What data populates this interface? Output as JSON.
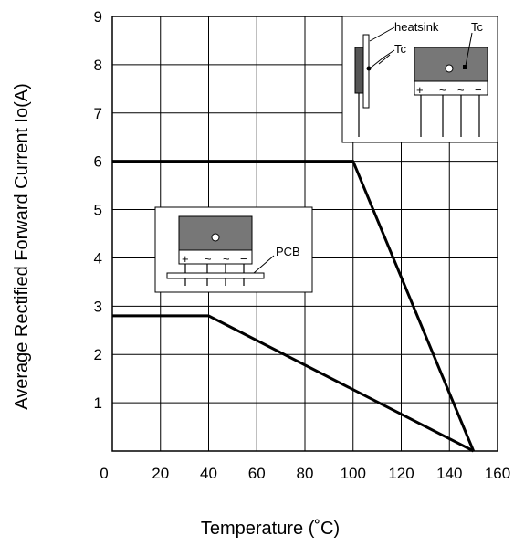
{
  "chart_data": {
    "type": "line",
    "xlabel": "Temperature (˚C)",
    "ylabel": "Average Rectified Forward Current Io(A)",
    "xlim": [
      0,
      160
    ],
    "ylim": [
      0,
      9
    ],
    "x_ticks": [
      "0",
      "20",
      "40",
      "60",
      "80",
      "100",
      "120",
      "140",
      "160"
    ],
    "y_ticks": [
      "1",
      "2",
      "3",
      "4",
      "5",
      "6",
      "7",
      "8",
      "9"
    ],
    "grid": true,
    "series": [
      {
        "points": [
          [
            0,
            6
          ],
          [
            100,
            6
          ],
          [
            150,
            0
          ]
        ]
      },
      {
        "points": [
          [
            0,
            2.8
          ],
          [
            40,
            2.8
          ],
          [
            150,
            0
          ]
        ]
      }
    ],
    "annotations": {
      "heatsink_inset": {
        "heatsink_label": "heatsink",
        "tc_label_side": "Tc",
        "tc_label_front": "Tc"
      },
      "pcb_inset": {
        "pcb_label": "PCB"
      }
    },
    "pin_marks": [
      "+",
      "~",
      "~",
      "−"
    ]
  }
}
